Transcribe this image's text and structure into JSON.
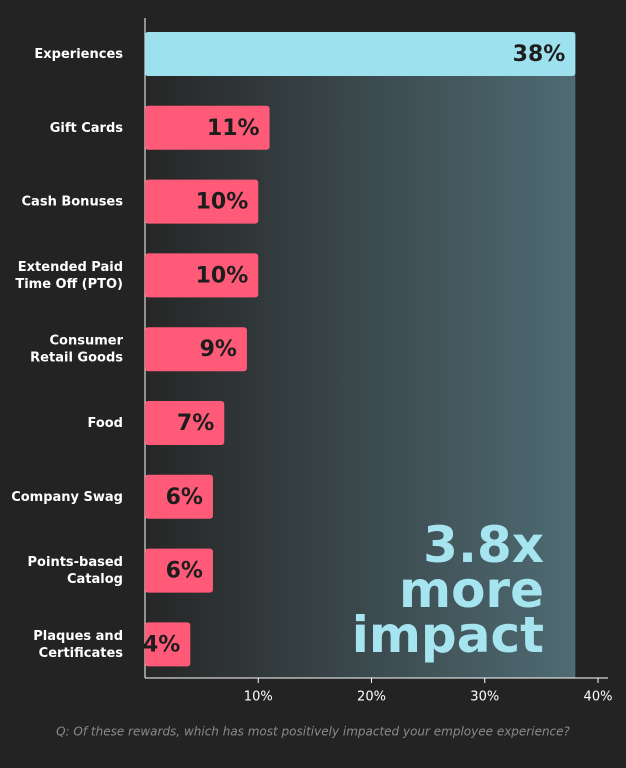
{
  "chart_data": {
    "type": "bar",
    "orientation": "horizontal",
    "categories": [
      "Experiences",
      "Gift Cards",
      "Cash Bonuses",
      "Extended Paid\nTime Off (PTO)",
      "Consumer\nRetail Goods",
      "Food",
      "Company Swag",
      "Points-based\nCatalog",
      "Plaques and\nCertificates"
    ],
    "values": [
      38,
      11,
      10,
      10,
      9,
      7,
      6,
      6,
      4
    ],
    "value_labels": [
      "38%",
      "11%",
      "10%",
      "10%",
      "9%",
      "7%",
      "6%",
      "6%",
      "4%"
    ],
    "colors": [
      "#9ee1ee",
      "#ff5b78",
      "#ff5b78",
      "#ff5b78",
      "#ff5b78",
      "#ff5b78",
      "#ff5b78",
      "#ff5b78",
      "#ff5b78"
    ],
    "xlim": [
      0,
      40
    ],
    "xticks": [
      {
        "value": 10,
        "label": "10%"
      },
      {
        "value": 20,
        "label": "20%"
      },
      {
        "value": 30,
        "label": "30%"
      },
      {
        "value": 40,
        "label": "40%"
      }
    ],
    "annotation": "3.8x\nmore\nimpact",
    "annotation_color": "#a6e4f0",
    "footnote": "Q: Of these rewards, which has most positively impacted your employee experience?"
  }
}
